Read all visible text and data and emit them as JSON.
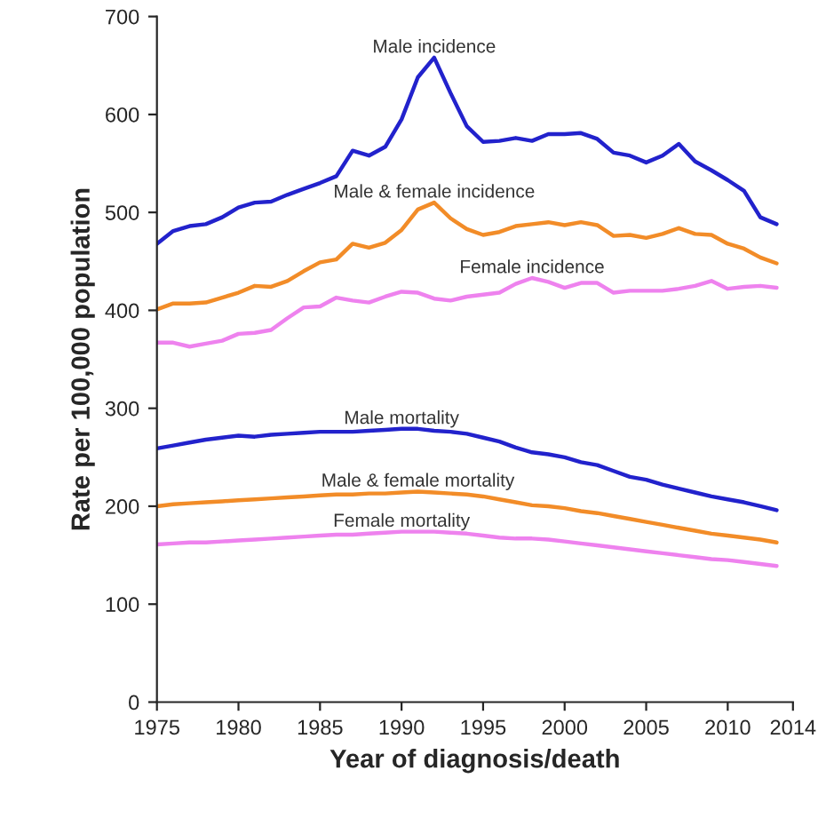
{
  "chart_data": {
    "type": "line",
    "xlabel": "Year of diagnosis/death",
    "ylabel": "Rate per 100,000 population",
    "x": [
      1975,
      1976,
      1977,
      1978,
      1979,
      1980,
      1981,
      1982,
      1983,
      1984,
      1985,
      1986,
      1987,
      1988,
      1989,
      1990,
      1991,
      1992,
      1993,
      1994,
      1995,
      1996,
      1997,
      1998,
      1999,
      2000,
      2001,
      2002,
      2003,
      2004,
      2005,
      2006,
      2007,
      2008,
      2009,
      2010,
      2011,
      2012,
      2013
    ],
    "xlim": [
      1975,
      2014
    ],
    "xticks": [
      1975,
      1980,
      1985,
      1990,
      1995,
      2000,
      2005,
      2010,
      2014
    ],
    "ylim": [
      0,
      700
    ],
    "yticks": [
      0,
      100,
      200,
      300,
      400,
      500,
      600,
      700
    ],
    "grid": false,
    "marker": "none",
    "line_style": "solid",
    "series": [
      {
        "name": "Male incidence",
        "color": "#2222cc",
        "values": [
          468,
          481,
          486,
          488,
          495,
          505,
          510,
          511,
          518,
          524,
          530,
          537,
          563,
          558,
          567,
          595,
          638,
          658,
          622,
          588,
          572,
          573,
          576,
          573,
          580,
          580,
          581,
          575,
          561,
          558,
          551,
          558,
          570,
          552,
          543,
          533,
          522,
          495,
          488
        ]
      },
      {
        "name": "Male & female incidence",
        "color": "#f28c28",
        "values": [
          401,
          407,
          407,
          408,
          413,
          418,
          425,
          424,
          430,
          440,
          449,
          452,
          468,
          464,
          469,
          482,
          503,
          510,
          494,
          483,
          477,
          480,
          486,
          488,
          490,
          487,
          490,
          487,
          476,
          477,
          474,
          478,
          484,
          478,
          477,
          468,
          463,
          454,
          448
        ]
      },
      {
        "name": "Female incidence",
        "color": "#ee82ee",
        "values": [
          367,
          367,
          363,
          366,
          369,
          376,
          377,
          380,
          392,
          403,
          404,
          413,
          410,
          408,
          414,
          419,
          418,
          412,
          410,
          414,
          416,
          418,
          427,
          433,
          429,
          423,
          428,
          428,
          418,
          420,
          420,
          420,
          422,
          425,
          430,
          422,
          424,
          425,
          423
        ]
      },
      {
        "name": "Male mortality",
        "color": "#2222cc",
        "values": [
          259,
          262,
          265,
          268,
          270,
          272,
          271,
          273,
          274,
          275,
          276,
          276,
          276,
          277,
          278,
          279,
          279,
          277,
          276,
          274,
          270,
          266,
          260,
          255,
          253,
          250,
          245,
          242,
          236,
          230,
          227,
          222,
          218,
          214,
          210,
          207,
          204,
          200,
          196
        ]
      },
      {
        "name": "Male & female mortality",
        "color": "#f28c28",
        "values": [
          200,
          202,
          203,
          204,
          205,
          206,
          207,
          208,
          209,
          210,
          211,
          212,
          212,
          213,
          213,
          214,
          215,
          214,
          213,
          212,
          210,
          207,
          204,
          201,
          200,
          198,
          195,
          193,
          190,
          187,
          184,
          181,
          178,
          175,
          172,
          170,
          168,
          166,
          163
        ]
      },
      {
        "name": "Female mortality",
        "color": "#ee82ee",
        "values": [
          161,
          162,
          163,
          163,
          164,
          165,
          166,
          167,
          168,
          169,
          170,
          171,
          171,
          172,
          173,
          174,
          174,
          174,
          173,
          172,
          170,
          168,
          167,
          167,
          166,
          164,
          162,
          160,
          158,
          156,
          154,
          152,
          150,
          148,
          146,
          145,
          143,
          141,
          139
        ]
      }
    ]
  }
}
